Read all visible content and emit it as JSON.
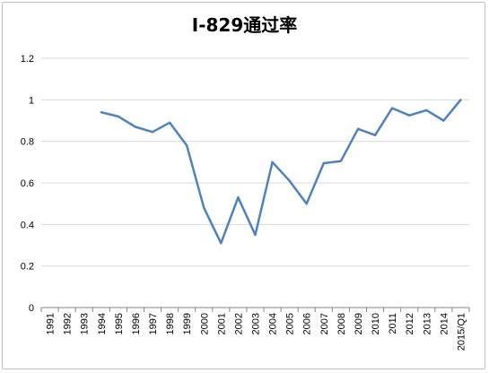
{
  "chart_data": {
    "type": "line",
    "title": "I-829通过率",
    "xlabel": "",
    "ylabel": "",
    "ylim": [
      0,
      1.2
    ],
    "yticks": [
      "0",
      "0.2",
      "0.4",
      "0.6",
      "0.8",
      "1",
      "1.2"
    ],
    "grid": "horizontal",
    "legend": "none",
    "categories": [
      "1991",
      "1992",
      "1993",
      "1994",
      "1995",
      "1996",
      "1997",
      "1998",
      "1999",
      "2000",
      "2001",
      "2002",
      "2003",
      "2004",
      "2005",
      "2006",
      "2007",
      "2008",
      "2009",
      "2010",
      "2011",
      "2012",
      "2013",
      "2014",
      "2015/Q1"
    ],
    "series": [
      {
        "values": [
          null,
          null,
          null,
          0.94,
          0.92,
          0.87,
          0.845,
          0.89,
          0.78,
          0.48,
          0.31,
          0.53,
          0.35,
          0.7,
          0.61,
          0.5,
          0.695,
          0.705,
          0.86,
          0.83,
          0.96,
          0.925,
          0.95,
          0.9,
          1.0
        ],
        "color": "#4f81bd"
      }
    ]
  }
}
